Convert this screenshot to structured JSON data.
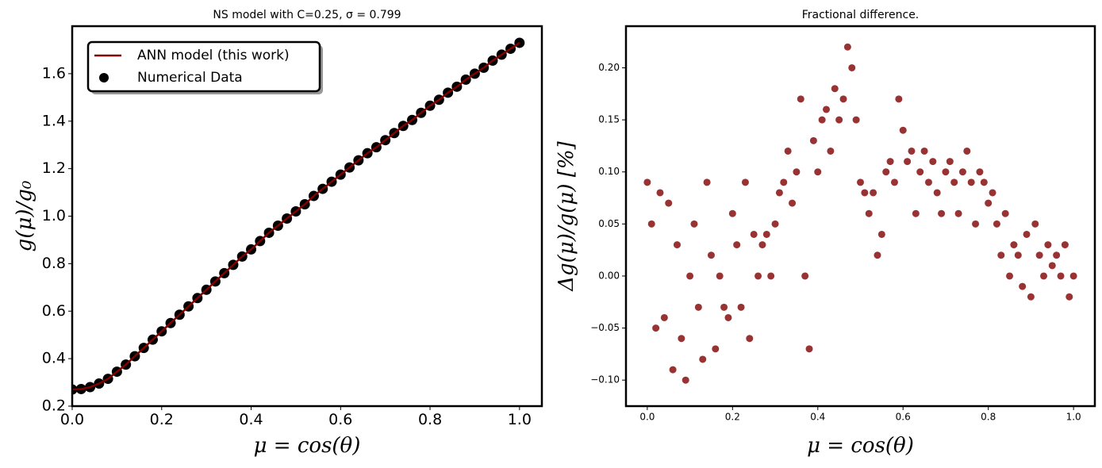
{
  "chart_data": [
    {
      "type": "line",
      "title": "NS model with C=0.25, σ = 0.799",
      "xlabel": "μ = cos(θ)",
      "ylabel": "g(μ)/g₀",
      "x": [
        0,
        0.02,
        0.04,
        0.06,
        0.08,
        0.1,
        0.12,
        0.14,
        0.16,
        0.18,
        0.2,
        0.22,
        0.24,
        0.26,
        0.28,
        0.3,
        0.32,
        0.34,
        0.36,
        0.38,
        0.4,
        0.42,
        0.44,
        0.46,
        0.48,
        0.5,
        0.52,
        0.54,
        0.56,
        0.58,
        0.6,
        0.62,
        0.64,
        0.66,
        0.68,
        0.7,
        0.72,
        0.74,
        0.76,
        0.78,
        0.8,
        0.82,
        0.84,
        0.86,
        0.88,
        0.9,
        0.92,
        0.94,
        0.96,
        0.98,
        1.0
      ],
      "series": [
        {
          "name": "ANN model (this work)",
          "type": "line",
          "color": "#800000",
          "values": [
            0.27,
            0.272,
            0.28,
            0.295,
            0.315,
            0.345,
            0.375,
            0.41,
            0.445,
            0.48,
            0.515,
            0.55,
            0.585,
            0.62,
            0.655,
            0.69,
            0.725,
            0.76,
            0.795,
            0.83,
            0.86,
            0.895,
            0.93,
            0.96,
            0.99,
            1.02,
            1.05,
            1.085,
            1.115,
            1.145,
            1.175,
            1.205,
            1.235,
            1.265,
            1.29,
            1.32,
            1.35,
            1.38,
            1.405,
            1.435,
            1.465,
            1.49,
            1.52,
            1.545,
            1.575,
            1.6,
            1.625,
            1.655,
            1.68,
            1.705,
            1.73
          ]
        },
        {
          "name": "Numerical Data",
          "type": "scatter",
          "color": "#000000",
          "values": [
            0.27,
            0.272,
            0.28,
            0.295,
            0.315,
            0.345,
            0.375,
            0.41,
            0.445,
            0.48,
            0.515,
            0.55,
            0.585,
            0.62,
            0.655,
            0.69,
            0.725,
            0.76,
            0.795,
            0.83,
            0.86,
            0.895,
            0.93,
            0.96,
            0.99,
            1.02,
            1.05,
            1.085,
            1.115,
            1.145,
            1.175,
            1.205,
            1.235,
            1.265,
            1.29,
            1.32,
            1.35,
            1.38,
            1.405,
            1.435,
            1.465,
            1.49,
            1.52,
            1.545,
            1.575,
            1.6,
            1.625,
            1.655,
            1.68,
            1.705,
            1.73
          ]
        }
      ],
      "xlim": [
        0,
        1.05
      ],
      "xticks": [
        {
          "value": 0,
          "label": "0.0"
        },
        0.2,
        0.4,
        0.6,
        0.8,
        {
          "value": 1,
          "label": "1.0"
        }
      ],
      "ylim": [
        0.2,
        1.8
      ],
      "yticks": [
        0.2,
        0.4,
        0.6,
        0.8,
        {
          "value": 1,
          "label": "1.0"
        },
        1.2,
        1.4,
        1.6
      ],
      "legend": "upper left"
    },
    {
      "type": "scatter",
      "title": "Fractional difference.",
      "xlabel": "μ = cos(θ)",
      "ylabel": "Δg(μ)/g(μ)  [%]",
      "color": "#800000",
      "x": [
        0,
        0.01,
        0.02,
        0.03,
        0.04,
        0.05,
        0.06,
        0.07,
        0.08,
        0.09,
        0.1,
        0.11,
        0.12,
        0.13,
        0.14,
        0.15,
        0.16,
        0.17,
        0.18,
        0.19,
        0.2,
        0.21,
        0.22,
        0.23,
        0.24,
        0.25,
        0.26,
        0.27,
        0.28,
        0.29,
        0.3,
        0.31,
        0.32,
        0.33,
        0.34,
        0.35,
        0.36,
        0.37,
        0.38,
        0.39,
        0.4,
        0.41,
        0.42,
        0.43,
        0.44,
        0.45,
        0.46,
        0.47,
        0.48,
        0.49,
        0.5,
        0.51,
        0.52,
        0.53,
        0.54,
        0.55,
        0.56,
        0.57,
        0.58,
        0.59,
        0.6,
        0.61,
        0.62,
        0.63,
        0.64,
        0.65,
        0.66,
        0.67,
        0.68,
        0.69,
        0.7,
        0.71,
        0.72,
        0.73,
        0.74,
        0.75,
        0.76,
        0.77,
        0.78,
        0.79,
        0.8,
        0.81,
        0.82,
        0.83,
        0.84,
        0.85,
        0.86,
        0.87,
        0.88,
        0.89,
        0.9,
        0.91,
        0.92,
        0.93,
        0.94,
        0.95,
        0.96,
        0.97,
        0.98,
        0.99,
        1.0
      ],
      "values": [
        0.09,
        0.05,
        -0.05,
        0.08,
        -0.04,
        0.07,
        -0.09,
        0.03,
        -0.06,
        -0.1,
        0.0,
        0.05,
        -0.03,
        -0.08,
        0.09,
        0.02,
        -0.07,
        0.0,
        -0.03,
        -0.04,
        0.06,
        0.03,
        -0.03,
        0.09,
        -0.06,
        0.04,
        0.0,
        0.03,
        0.04,
        0.0,
        0.05,
        0.08,
        0.09,
        0.12,
        0.07,
        0.1,
        0.17,
        0.0,
        -0.07,
        0.13,
        0.1,
        0.15,
        0.16,
        0.12,
        0.18,
        0.15,
        0.17,
        0.22,
        0.2,
        0.15,
        0.09,
        0.08,
        0.06,
        0.08,
        0.02,
        0.04,
        0.1,
        0.11,
        0.09,
        0.17,
        0.14,
        0.11,
        0.12,
        0.06,
        0.1,
        0.12,
        0.09,
        0.11,
        0.08,
        0.06,
        0.1,
        0.11,
        0.09,
        0.06,
        0.1,
        0.12,
        0.09,
        0.05,
        0.1,
        0.09,
        0.07,
        0.08,
        0.05,
        0.02,
        0.06,
        0.0,
        0.03,
        0.02,
        -0.01,
        0.04,
        -0.02,
        0.05,
        0.02,
        0.0,
        0.03,
        0.01,
        0.02,
        0.0,
        0.03,
        -0.02,
        0.0
      ],
      "xlim": [
        -0.05,
        1.05
      ],
      "xticks": [
        {
          "value": 0,
          "label": "0.0"
        },
        0.2,
        0.4,
        0.6,
        0.8,
        {
          "value": 1,
          "label": "1.0"
        }
      ],
      "ylim": [
        -0.125,
        0.24
      ],
      "yticks": [
        {
          "value": -0.1,
          "label": "−0.10"
        },
        {
          "value": -0.05,
          "label": "−0.05"
        },
        {
          "value": 0,
          "label": "0.00"
        },
        0.05,
        {
          "value": 0.1,
          "label": "0.10"
        },
        0.15,
        {
          "value": 0.2,
          "label": "0.20"
        }
      ]
    }
  ]
}
